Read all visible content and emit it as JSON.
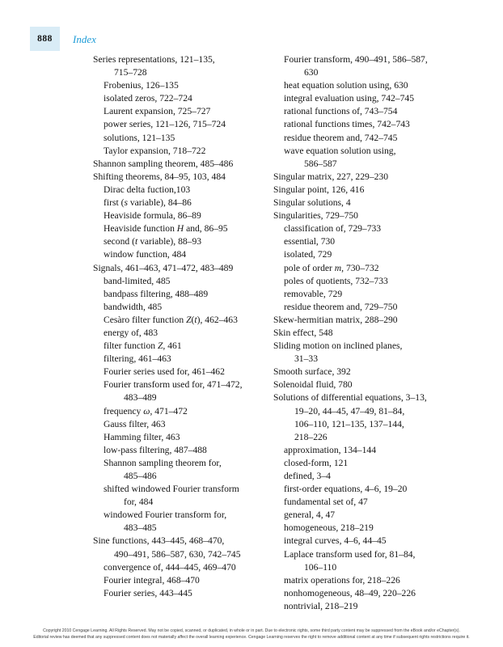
{
  "header": {
    "page_number": "888",
    "title": "Index"
  },
  "colors": {
    "page_number_box": "#d9ecf6",
    "title_blue": "#1e9cd7"
  },
  "columns": [
    {
      "lines": [
        {
          "ind": 0,
          "seg": [
            {
              "t": "Series representations, 121–135,"
            }
          ]
        },
        {
          "ind": 2,
          "seg": [
            {
              "t": "715–728"
            }
          ]
        },
        {
          "ind": 1,
          "seg": [
            {
              "t": "Frobenius, 126–135"
            }
          ]
        },
        {
          "ind": 1,
          "seg": [
            {
              "t": "isolated zeros, 722–724"
            }
          ]
        },
        {
          "ind": 1,
          "seg": [
            {
              "t": "Laurent expansion, 725–727"
            }
          ]
        },
        {
          "ind": 1,
          "seg": [
            {
              "t": "power series, 121–126, 715–724"
            }
          ]
        },
        {
          "ind": 1,
          "seg": [
            {
              "t": "solutions, 121–135"
            }
          ]
        },
        {
          "ind": 1,
          "seg": [
            {
              "t": "Taylor expansion, 718–722"
            }
          ]
        },
        {
          "ind": 0,
          "seg": [
            {
              "t": "Shannon sampling theorem, 485–486"
            }
          ]
        },
        {
          "ind": 0,
          "seg": [
            {
              "t": "Shifting theorems, 84–95, 103, 484"
            }
          ]
        },
        {
          "ind": 1,
          "seg": [
            {
              "t": "Dirac delta fuction,103"
            }
          ]
        },
        {
          "ind": 1,
          "seg": [
            {
              "t": "first ("
            },
            {
              "t": "s",
              "i": true
            },
            {
              "t": " variable), 84–86"
            }
          ]
        },
        {
          "ind": 1,
          "seg": [
            {
              "t": "Heaviside formula, 86–89"
            }
          ]
        },
        {
          "ind": 1,
          "seg": [
            {
              "t": "Heaviside function "
            },
            {
              "t": "H",
              "i": true
            },
            {
              "t": " and, 86–95"
            }
          ]
        },
        {
          "ind": 1,
          "seg": [
            {
              "t": "second ("
            },
            {
              "t": "t",
              "i": true
            },
            {
              "t": " variable), 88–93"
            }
          ]
        },
        {
          "ind": 1,
          "seg": [
            {
              "t": "window function, 484"
            }
          ]
        },
        {
          "ind": 0,
          "seg": [
            {
              "t": "Signals, 461–463, 471–472, 483–489"
            }
          ]
        },
        {
          "ind": 1,
          "seg": [
            {
              "t": "band-limited, 485"
            }
          ]
        },
        {
          "ind": 1,
          "seg": [
            {
              "t": "bandpass filtering, 488–489"
            }
          ]
        },
        {
          "ind": 1,
          "seg": [
            {
              "t": "bandwidth, 485"
            }
          ]
        },
        {
          "ind": 1,
          "seg": [
            {
              "t": "Cesàro filter function "
            },
            {
              "t": "Z",
              "i": true
            },
            {
              "t": "("
            },
            {
              "t": "t",
              "i": true
            },
            {
              "t": "), 462–463"
            }
          ]
        },
        {
          "ind": 1,
          "seg": [
            {
              "t": "energy of, 483"
            }
          ]
        },
        {
          "ind": 1,
          "seg": [
            {
              "t": "filter function "
            },
            {
              "t": "Z",
              "i": true
            },
            {
              "t": ", 461"
            }
          ]
        },
        {
          "ind": 1,
          "seg": [
            {
              "t": "filtering, 461–463"
            }
          ]
        },
        {
          "ind": 1,
          "seg": [
            {
              "t": "Fourier series used for, 461–462"
            }
          ]
        },
        {
          "ind": 1,
          "seg": [
            {
              "t": "Fourier transform used for, 471–472,"
            }
          ]
        },
        {
          "ind": 3,
          "seg": [
            {
              "t": "483–489"
            }
          ]
        },
        {
          "ind": 1,
          "seg": [
            {
              "t": "frequency "
            },
            {
              "t": "ω",
              "i": true
            },
            {
              "t": ", 471–472"
            }
          ]
        },
        {
          "ind": 1,
          "seg": [
            {
              "t": "Gauss filter, 463"
            }
          ]
        },
        {
          "ind": 1,
          "seg": [
            {
              "t": "Hamming filter, 463"
            }
          ]
        },
        {
          "ind": 1,
          "seg": [
            {
              "t": "low-pass filtering, 487–488"
            }
          ]
        },
        {
          "ind": 1,
          "seg": [
            {
              "t": "Shannon sampling theorem for,"
            }
          ]
        },
        {
          "ind": 3,
          "seg": [
            {
              "t": "485–486"
            }
          ]
        },
        {
          "ind": 1,
          "seg": [
            {
              "t": "shifted windowed Fourier transform"
            }
          ]
        },
        {
          "ind": 3,
          "seg": [
            {
              "t": "for, 484"
            }
          ]
        },
        {
          "ind": 1,
          "seg": [
            {
              "t": "windowed Fourier transform for,"
            }
          ]
        },
        {
          "ind": 3,
          "seg": [
            {
              "t": "483–485"
            }
          ]
        },
        {
          "ind": 0,
          "seg": [
            {
              "t": "Sine functions, 443–445, 468–470,"
            }
          ]
        },
        {
          "ind": 2,
          "seg": [
            {
              "t": "490–491, 586–587, 630, 742–745"
            }
          ]
        },
        {
          "ind": 1,
          "seg": [
            {
              "t": "convergence of, 444–445, 469–470"
            }
          ]
        },
        {
          "ind": 1,
          "seg": [
            {
              "t": "Fourier integral, 468–470"
            }
          ]
        },
        {
          "ind": 1,
          "seg": [
            {
              "t": "Fourier series, 443–445"
            }
          ]
        }
      ]
    },
    {
      "lines": [
        {
          "ind": 1,
          "seg": [
            {
              "t": "Fourier transform, 490–491, 586–587,"
            }
          ]
        },
        {
          "ind": 3,
          "seg": [
            {
              "t": "630"
            }
          ]
        },
        {
          "ind": 1,
          "seg": [
            {
              "t": "heat equation solution using, 630"
            }
          ]
        },
        {
          "ind": 1,
          "seg": [
            {
              "t": "integral evaluation using, 742–745"
            }
          ]
        },
        {
          "ind": 1,
          "seg": [
            {
              "t": "rational functions of, 743–754"
            }
          ]
        },
        {
          "ind": 1,
          "seg": [
            {
              "t": "rational functions times, 742–743"
            }
          ]
        },
        {
          "ind": 1,
          "seg": [
            {
              "t": "residue theorem and, 742–745"
            }
          ]
        },
        {
          "ind": 1,
          "seg": [
            {
              "t": "wave equation solution using,"
            }
          ]
        },
        {
          "ind": 3,
          "seg": [
            {
              "t": "586–587"
            }
          ]
        },
        {
          "ind": 0,
          "seg": [
            {
              "t": "Singular matrix, 227, 229–230"
            }
          ]
        },
        {
          "ind": 0,
          "seg": [
            {
              "t": "Singular point, 126, 416"
            }
          ]
        },
        {
          "ind": 0,
          "seg": [
            {
              "t": "Singular solutions, 4"
            }
          ]
        },
        {
          "ind": 0,
          "seg": [
            {
              "t": "Singularities, 729–750"
            }
          ]
        },
        {
          "ind": 1,
          "seg": [
            {
              "t": "classification of, 729–733"
            }
          ]
        },
        {
          "ind": 1,
          "seg": [
            {
              "t": "essential, 730"
            }
          ]
        },
        {
          "ind": 1,
          "seg": [
            {
              "t": "isolated, 729"
            }
          ]
        },
        {
          "ind": 1,
          "seg": [
            {
              "t": "pole of order "
            },
            {
              "t": "m",
              "i": true
            },
            {
              "t": ", 730–732"
            }
          ]
        },
        {
          "ind": 1,
          "seg": [
            {
              "t": "poles of quotients, 732–733"
            }
          ]
        },
        {
          "ind": 1,
          "seg": [
            {
              "t": "removable, 729"
            }
          ]
        },
        {
          "ind": 1,
          "seg": [
            {
              "t": "residue theorem and, 729–750"
            }
          ]
        },
        {
          "ind": 0,
          "seg": [
            {
              "t": "Skew-hermitian matrix, 288–290"
            }
          ]
        },
        {
          "ind": 0,
          "seg": [
            {
              "t": "Skin effect, 548"
            }
          ]
        },
        {
          "ind": 0,
          "seg": [
            {
              "t": "Sliding motion on inclined planes,"
            }
          ]
        },
        {
          "ind": 2,
          "seg": [
            {
              "t": "31–33"
            }
          ]
        },
        {
          "ind": 0,
          "seg": [
            {
              "t": "Smooth surface, 392"
            }
          ]
        },
        {
          "ind": 0,
          "seg": [
            {
              "t": "Solenoidal fluid, 780"
            }
          ]
        },
        {
          "ind": 0,
          "seg": [
            {
              "t": "Solutions of differential equations, 3–13,"
            }
          ]
        },
        {
          "ind": 2,
          "seg": [
            {
              "t": "19–20, 44–45, 47–49, 81–84,"
            }
          ]
        },
        {
          "ind": 2,
          "seg": [
            {
              "t": "106–110, 121–135, 137–144,"
            }
          ]
        },
        {
          "ind": 2,
          "seg": [
            {
              "t": "218–226"
            }
          ]
        },
        {
          "ind": 1,
          "seg": [
            {
              "t": "approximation, 134–144"
            }
          ]
        },
        {
          "ind": 1,
          "seg": [
            {
              "t": "closed-form, 121"
            }
          ]
        },
        {
          "ind": 1,
          "seg": [
            {
              "t": "defined, 3–4"
            }
          ]
        },
        {
          "ind": 1,
          "seg": [
            {
              "t": "first-order equations, 4–6, 19–20"
            }
          ]
        },
        {
          "ind": 1,
          "seg": [
            {
              "t": "fundamental set of, 47"
            }
          ]
        },
        {
          "ind": 1,
          "seg": [
            {
              "t": "general, 4, 47"
            }
          ]
        },
        {
          "ind": 1,
          "seg": [
            {
              "t": "homogeneous, 218–219"
            }
          ]
        },
        {
          "ind": 1,
          "seg": [
            {
              "t": "integral curves, 4–6, 44–45"
            }
          ]
        },
        {
          "ind": 1,
          "seg": [
            {
              "t": "Laplace transform used for, 81–84,"
            }
          ]
        },
        {
          "ind": 3,
          "seg": [
            {
              "t": "106–110"
            }
          ]
        },
        {
          "ind": 1,
          "seg": [
            {
              "t": "matrix operations for, 218–226"
            }
          ]
        },
        {
          "ind": 1,
          "seg": [
            {
              "t": "nonhomogeneous, 48–49, 220–226"
            }
          ]
        },
        {
          "ind": 1,
          "seg": [
            {
              "t": "nontrivial, 218–219"
            }
          ]
        }
      ]
    }
  ],
  "footer": {
    "line1": "Copyright 2010 Cengage Learning. All Rights Reserved. May not be copied, scanned, or duplicated, in whole or in part. Due to electronic rights, some third party content may be suppressed from the eBook and/or eChapter(s).",
    "line2": "Editorial review has deemed that any suppressed content does not materially affect the overall learning experience. Cengage Learning reserves the right to remove additional content at any time if subsequent rights restrictions require it."
  }
}
